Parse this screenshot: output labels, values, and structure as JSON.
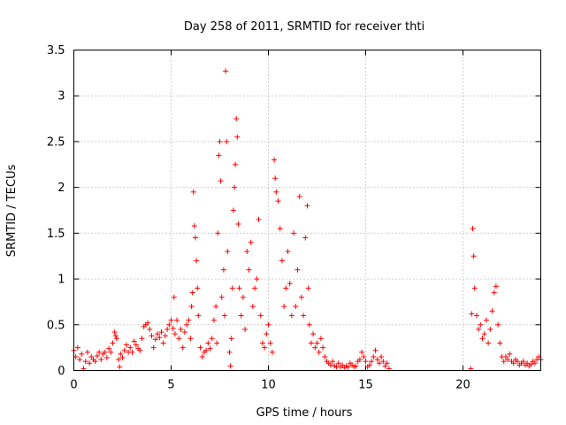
{
  "chart_data": {
    "type": "scatter",
    "title": "Day 258 of 2011, SRMTID for receiver thti",
    "xlabel": "GPS time / hours",
    "ylabel": "SRMTID / TECUs",
    "xlim": [
      0,
      24
    ],
    "ylim": [
      0,
      3.5
    ],
    "x_ticks": [
      0,
      5,
      10,
      15,
      20
    ],
    "x_tick_labels": [
      "0",
      "5",
      "10",
      "15",
      "20"
    ],
    "y_ticks": [
      0,
      0.5,
      1,
      1.5,
      2,
      2.5,
      3,
      3.5
    ],
    "y_tick_labels": [
      "0",
      "0.5",
      "1",
      "1.5",
      "2",
      "2.5",
      "3",
      "3.5"
    ],
    "grid": true,
    "marker": "+",
    "color": "#ff0000",
    "series": [
      {
        "name": "SRMTID",
        "points": [
          [
            0.0,
            0.22
          ],
          [
            0.1,
            0.15
          ],
          [
            0.2,
            0.25
          ],
          [
            0.3,
            0.12
          ],
          [
            0.4,
            0.18
          ],
          [
            0.5,
            0.02
          ],
          [
            0.6,
            0.1
          ],
          [
            0.7,
            0.2
          ],
          [
            0.8,
            0.08
          ],
          [
            0.9,
            0.15
          ],
          [
            1.0,
            0.12
          ],
          [
            1.1,
            0.1
          ],
          [
            1.2,
            0.16
          ],
          [
            1.3,
            0.2
          ],
          [
            1.4,
            0.12
          ],
          [
            1.5,
            0.18
          ],
          [
            1.6,
            0.2
          ],
          [
            1.7,
            0.14
          ],
          [
            1.8,
            0.24
          ],
          [
            1.9,
            0.2
          ],
          [
            2.0,
            0.3
          ],
          [
            2.1,
            0.42
          ],
          [
            2.15,
            0.38
          ],
          [
            2.2,
            0.35
          ],
          [
            2.3,
            0.12
          ],
          [
            2.35,
            0.04
          ],
          [
            2.4,
            0.18
          ],
          [
            2.5,
            0.14
          ],
          [
            2.6,
            0.22
          ],
          [
            2.7,
            0.28
          ],
          [
            2.8,
            0.2
          ],
          [
            2.9,
            0.25
          ],
          [
            3.0,
            0.2
          ],
          [
            3.1,
            0.32
          ],
          [
            3.2,
            0.28
          ],
          [
            3.3,
            0.24
          ],
          [
            3.4,
            0.22
          ],
          [
            3.5,
            0.35
          ],
          [
            3.6,
            0.48
          ],
          [
            3.7,
            0.5
          ],
          [
            3.8,
            0.52
          ],
          [
            3.9,
            0.45
          ],
          [
            4.0,
            0.38
          ],
          [
            4.1,
            0.25
          ],
          [
            4.2,
            0.34
          ],
          [
            4.3,
            0.4
          ],
          [
            4.4,
            0.36
          ],
          [
            4.5,
            0.42
          ],
          [
            4.6,
            0.3
          ],
          [
            4.7,
            0.38
          ],
          [
            4.8,
            0.45
          ],
          [
            4.9,
            0.5
          ],
          [
            5.0,
            0.55
          ],
          [
            5.1,
            0.46
          ],
          [
            5.15,
            0.8
          ],
          [
            5.2,
            0.4
          ],
          [
            5.3,
            0.55
          ],
          [
            5.4,
            0.35
          ],
          [
            5.5,
            0.45
          ],
          [
            5.6,
            0.25
          ],
          [
            5.7,
            0.42
          ],
          [
            5.8,
            0.5
          ],
          [
            5.9,
            0.55
          ],
          [
            6.0,
            0.35
          ],
          [
            6.05,
            0.7
          ],
          [
            6.1,
            0.85
          ],
          [
            6.15,
            1.95
          ],
          [
            6.2,
            1.58
          ],
          [
            6.25,
            1.45
          ],
          [
            6.3,
            1.2
          ],
          [
            6.35,
            0.9
          ],
          [
            6.4,
            0.6
          ],
          [
            6.5,
            0.25
          ],
          [
            6.6,
            0.15
          ],
          [
            6.7,
            0.2
          ],
          [
            6.8,
            0.22
          ],
          [
            6.9,
            0.3
          ],
          [
            7.0,
            0.24
          ],
          [
            7.1,
            0.35
          ],
          [
            7.2,
            0.55
          ],
          [
            7.3,
            0.7
          ],
          [
            7.35,
            0.3
          ],
          [
            7.4,
            1.5
          ],
          [
            7.45,
            2.35
          ],
          [
            7.5,
            2.5
          ],
          [
            7.55,
            2.07
          ],
          [
            7.6,
            0.8
          ],
          [
            7.7,
            1.1
          ],
          [
            7.75,
            0.6
          ],
          [
            7.8,
            3.27
          ],
          [
            7.85,
            2.5
          ],
          [
            7.9,
            1.3
          ],
          [
            8.0,
            0.2
          ],
          [
            8.05,
            0.05
          ],
          [
            8.1,
            0.35
          ],
          [
            8.15,
            0.9
          ],
          [
            8.2,
            1.75
          ],
          [
            8.25,
            2.0
          ],
          [
            8.3,
            2.25
          ],
          [
            8.35,
            2.75
          ],
          [
            8.4,
            2.55
          ],
          [
            8.45,
            1.6
          ],
          [
            8.5,
            0.9
          ],
          [
            8.6,
            0.6
          ],
          [
            8.7,
            0.8
          ],
          [
            8.8,
            0.45
          ],
          [
            8.9,
            1.3
          ],
          [
            9.0,
            1.1
          ],
          [
            9.1,
            1.4
          ],
          [
            9.2,
            0.7
          ],
          [
            9.3,
            0.9
          ],
          [
            9.4,
            1.0
          ],
          [
            9.5,
            1.65
          ],
          [
            9.6,
            0.6
          ],
          [
            9.7,
            0.3
          ],
          [
            9.8,
            0.25
          ],
          [
            9.9,
            0.4
          ],
          [
            10.0,
            0.5
          ],
          [
            10.1,
            0.3
          ],
          [
            10.2,
            0.2
          ],
          [
            10.3,
            2.3
          ],
          [
            10.35,
            2.1
          ],
          [
            10.4,
            1.95
          ],
          [
            10.5,
            1.85
          ],
          [
            10.6,
            1.55
          ],
          [
            10.7,
            1.2
          ],
          [
            10.8,
            0.7
          ],
          [
            10.9,
            0.9
          ],
          [
            11.0,
            1.3
          ],
          [
            11.1,
            0.95
          ],
          [
            11.2,
            0.6
          ],
          [
            11.3,
            1.5
          ],
          [
            11.4,
            0.7
          ],
          [
            11.5,
            1.1
          ],
          [
            11.6,
            1.9
          ],
          [
            11.7,
            0.8
          ],
          [
            11.8,
            0.6
          ],
          [
            11.9,
            1.45
          ],
          [
            12.0,
            1.8
          ],
          [
            12.05,
            0.9
          ],
          [
            12.1,
            0.5
          ],
          [
            12.2,
            0.3
          ],
          [
            12.3,
            0.4
          ],
          [
            12.4,
            0.25
          ],
          [
            12.5,
            0.3
          ],
          [
            12.6,
            0.2
          ],
          [
            12.7,
            0.35
          ],
          [
            12.8,
            0.25
          ],
          [
            12.9,
            0.15
          ],
          [
            13.0,
            0.1
          ],
          [
            13.1,
            0.08
          ],
          [
            13.2,
            0.06
          ],
          [
            13.3,
            0.1
          ],
          [
            13.4,
            0.05
          ],
          [
            13.5,
            0.04
          ],
          [
            13.6,
            0.08
          ],
          [
            13.7,
            0.04
          ],
          [
            13.8,
            0.06
          ],
          [
            13.9,
            0.03
          ],
          [
            14.0,
            0.05
          ],
          [
            14.1,
            0.04
          ],
          [
            14.2,
            0.08
          ],
          [
            14.3,
            0.06
          ],
          [
            14.4,
            0.04
          ],
          [
            14.5,
            0.05
          ],
          [
            14.6,
            0.1
          ],
          [
            14.7,
            0.12
          ],
          [
            14.8,
            0.2
          ],
          [
            14.9,
            0.15
          ],
          [
            15.0,
            0.1
          ],
          [
            15.1,
            0.04
          ],
          [
            15.2,
            0.06
          ],
          [
            15.3,
            0.1
          ],
          [
            15.4,
            0.15
          ],
          [
            15.5,
            0.22
          ],
          [
            15.6,
            0.12
          ],
          [
            15.7,
            0.08
          ],
          [
            15.8,
            0.15
          ],
          [
            15.9,
            0.1
          ],
          [
            16.0,
            0.05
          ],
          [
            16.1,
            0.08
          ],
          [
            16.2,
            0.02
          ],
          [
            20.4,
            0.02
          ],
          [
            20.45,
            0.62
          ],
          [
            20.5,
            1.55
          ],
          [
            20.55,
            1.25
          ],
          [
            20.6,
            0.9
          ],
          [
            20.7,
            0.6
          ],
          [
            20.8,
            0.45
          ],
          [
            20.9,
            0.5
          ],
          [
            21.0,
            0.35
          ],
          [
            21.1,
            0.4
          ],
          [
            21.2,
            0.55
          ],
          [
            21.3,
            0.3
          ],
          [
            21.4,
            0.45
          ],
          [
            21.5,
            0.65
          ],
          [
            21.6,
            0.85
          ],
          [
            21.7,
            0.92
          ],
          [
            21.8,
            0.5
          ],
          [
            21.9,
            0.3
          ],
          [
            22.0,
            0.15
          ],
          [
            22.1,
            0.1
          ],
          [
            22.2,
            0.15
          ],
          [
            22.3,
            0.12
          ],
          [
            22.4,
            0.18
          ],
          [
            22.5,
            0.1
          ],
          [
            22.6,
            0.08
          ],
          [
            22.7,
            0.12
          ],
          [
            22.8,
            0.1
          ],
          [
            22.9,
            0.06
          ],
          [
            23.0,
            0.08
          ],
          [
            23.1,
            0.1
          ],
          [
            23.2,
            0.06
          ],
          [
            23.3,
            0.08
          ],
          [
            23.4,
            0.05
          ],
          [
            23.5,
            0.07
          ],
          [
            23.6,
            0.1
          ],
          [
            23.7,
            0.08
          ],
          [
            23.8,
            0.12
          ],
          [
            23.9,
            0.15
          ],
          [
            24.0,
            0.12
          ]
        ]
      }
    ]
  }
}
